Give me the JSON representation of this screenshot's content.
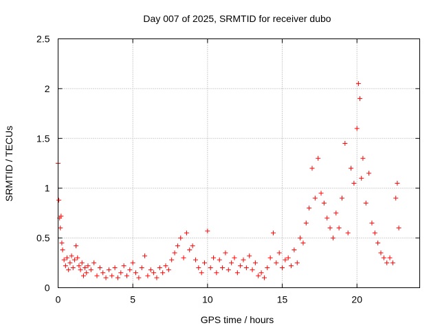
{
  "chart_data": {
    "type": "scatter",
    "title": "Day 007 of 2025, SRMTID for receiver dubo",
    "xlabel": "GPS time / hours",
    "ylabel": "SRMTID / TECUs",
    "xlim": [
      0,
      24.2
    ],
    "ylim": [
      0,
      2.5
    ],
    "xticks": [
      0,
      5,
      10,
      15,
      20
    ],
    "xtick_labels": [
      "0",
      "5",
      "10",
      "15",
      "20"
    ],
    "yticks": [
      0,
      0.5,
      1,
      1.5,
      2,
      2.5
    ],
    "ytick_labels": [
      "0",
      "0.5",
      "1",
      "1.5",
      "2",
      "2.5"
    ],
    "grid": true,
    "marker": "+",
    "color": "#ff0000",
    "series": [
      {
        "name": "SRMTID",
        "x": [
          0.0,
          0.05,
          0.1,
          0.15,
          0.2,
          0.25,
          0.3,
          0.4,
          0.5,
          0.6,
          0.7,
          0.8,
          0.9,
          1.0,
          1.1,
          1.2,
          1.3,
          1.4,
          1.5,
          1.6,
          1.7,
          1.8,
          1.9,
          2.0,
          2.2,
          2.4,
          2.6,
          2.8,
          3.0,
          3.2,
          3.4,
          3.6,
          3.8,
          4.0,
          4.2,
          4.4,
          4.6,
          4.8,
          5.0,
          5.2,
          5.4,
          5.6,
          5.8,
          6.0,
          6.2,
          6.4,
          6.6,
          6.8,
          7.0,
          7.2,
          7.4,
          7.6,
          7.8,
          8.0,
          8.2,
          8.4,
          8.6,
          8.8,
          9.0,
          9.2,
          9.4,
          9.6,
          9.8,
          10.0,
          10.2,
          10.4,
          10.6,
          10.8,
          11.0,
          11.2,
          11.4,
          11.6,
          11.8,
          12.0,
          12.2,
          12.4,
          12.6,
          12.8,
          13.0,
          13.2,
          13.4,
          13.6,
          13.8,
          14.0,
          14.2,
          14.4,
          14.6,
          14.8,
          15.0,
          15.2,
          15.4,
          15.6,
          15.8,
          16.0,
          16.2,
          16.4,
          16.6,
          16.8,
          17.0,
          17.2,
          17.4,
          17.6,
          17.8,
          18.0,
          18.2,
          18.4,
          18.6,
          18.8,
          19.0,
          19.2,
          19.4,
          19.6,
          19.8,
          20.0,
          20.1,
          20.2,
          20.3,
          20.4,
          20.6,
          20.8,
          21.0,
          21.2,
          21.4,
          21.6,
          21.8,
          22.0,
          22.2,
          22.4,
          22.6,
          22.7,
          22.8
        ],
        "y": [
          1.25,
          0.88,
          0.7,
          0.6,
          0.72,
          0.45,
          0.38,
          0.28,
          0.22,
          0.3,
          0.18,
          0.25,
          0.32,
          0.2,
          0.28,
          0.42,
          0.3,
          0.22,
          0.18,
          0.25,
          0.12,
          0.2,
          0.15,
          0.22,
          0.18,
          0.25,
          0.12,
          0.2,
          0.15,
          0.1,
          0.18,
          0.12,
          0.2,
          0.1,
          0.15,
          0.22,
          0.12,
          0.18,
          0.25,
          0.15,
          0.1,
          0.2,
          0.32,
          0.12,
          0.18,
          0.15,
          0.1,
          0.2,
          0.15,
          0.22,
          0.18,
          0.28,
          0.35,
          0.42,
          0.5,
          0.3,
          0.55,
          0.38,
          0.42,
          0.28,
          0.2,
          0.15,
          0.25,
          0.57,
          0.2,
          0.3,
          0.15,
          0.28,
          0.2,
          0.35,
          0.18,
          0.25,
          0.3,
          0.15,
          0.22,
          0.28,
          0.2,
          0.32,
          0.18,
          0.25,
          0.12,
          0.15,
          0.1,
          0.2,
          0.3,
          0.55,
          0.25,
          0.35,
          0.2,
          0.28,
          0.3,
          0.22,
          0.38,
          0.25,
          0.5,
          0.45,
          0.65,
          0.8,
          1.2,
          0.9,
          1.3,
          0.95,
          0.85,
          0.7,
          0.6,
          0.5,
          0.75,
          0.6,
          0.9,
          1.45,
          0.55,
          1.2,
          1.05,
          1.6,
          2.05,
          1.9,
          1.1,
          1.3,
          0.85,
          1.15,
          0.65,
          0.55,
          0.45,
          0.35,
          0.3,
          0.25,
          0.3,
          0.25,
          0.9,
          1.05,
          0.6
        ]
      }
    ]
  }
}
